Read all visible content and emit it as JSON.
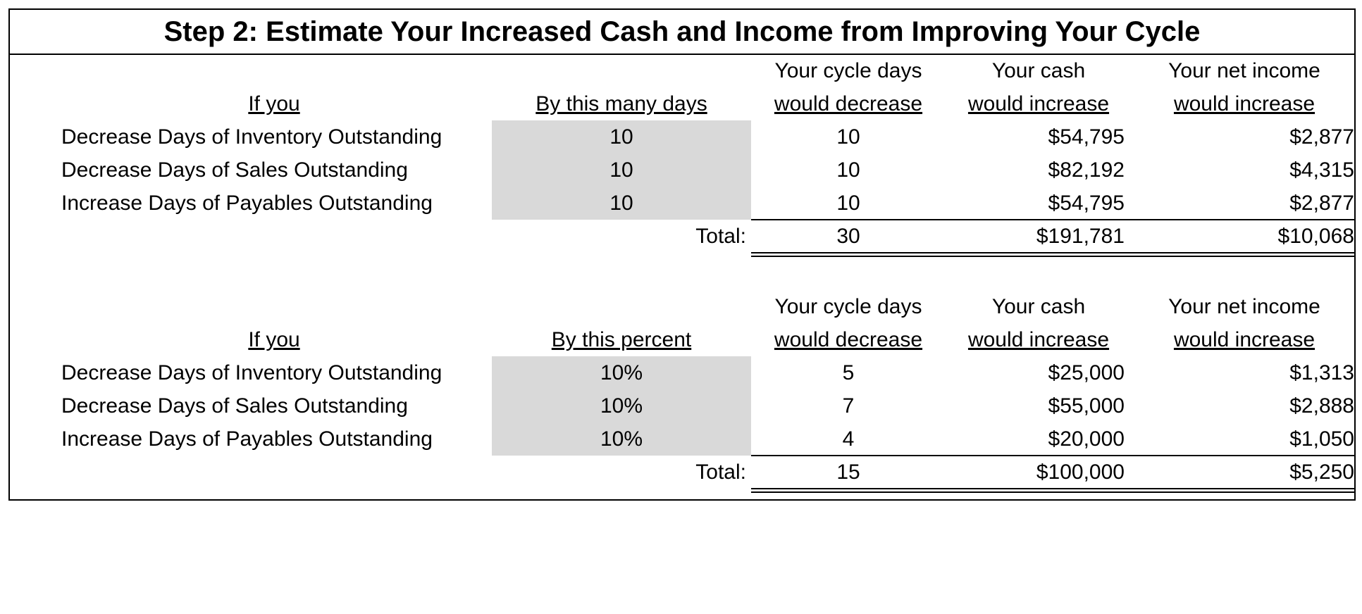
{
  "title": "Step 2: Estimate Your Increased Cash and Income from Improving Your Cycle",
  "sections": [
    {
      "headers": [
        [
          "If you"
        ],
        [
          "By this many days"
        ],
        [
          "Your cycle days",
          "would decrease"
        ],
        [
          "Your cash",
          "would increase"
        ],
        [
          "Your net income",
          "would increase"
        ]
      ],
      "rows": [
        [
          "Decrease Days of Inventory Outstanding",
          "10",
          "10",
          "$54,795",
          "$2,877"
        ],
        [
          "Decrease Days of Sales Outstanding",
          "10",
          "10",
          "$82,192",
          "$4,315"
        ],
        [
          "Increase Days of Payables Outstanding",
          "10",
          "10",
          "$54,795",
          "$2,877"
        ]
      ],
      "total_label": "Total:",
      "totals": [
        "30",
        "$191,781",
        "$10,068"
      ]
    },
    {
      "headers": [
        [
          "If you"
        ],
        [
          "By this percent"
        ],
        [
          "Your cycle days",
          "would decrease"
        ],
        [
          "Your cash",
          "would increase"
        ],
        [
          "Your net income",
          "would increase"
        ]
      ],
      "rows": [
        [
          "Decrease Days of Inventory Outstanding",
          "10%",
          "5",
          "$25,000",
          "$1,313"
        ],
        [
          "Decrease Days of Sales Outstanding",
          "10%",
          "7",
          "$55,000",
          "$2,888"
        ],
        [
          "Increase Days of Payables Outstanding",
          "10%",
          "4",
          "$20,000",
          "$1,050"
        ]
      ],
      "total_label": "Total:",
      "totals": [
        "15",
        "$100,000",
        "$5,250"
      ]
    }
  ]
}
